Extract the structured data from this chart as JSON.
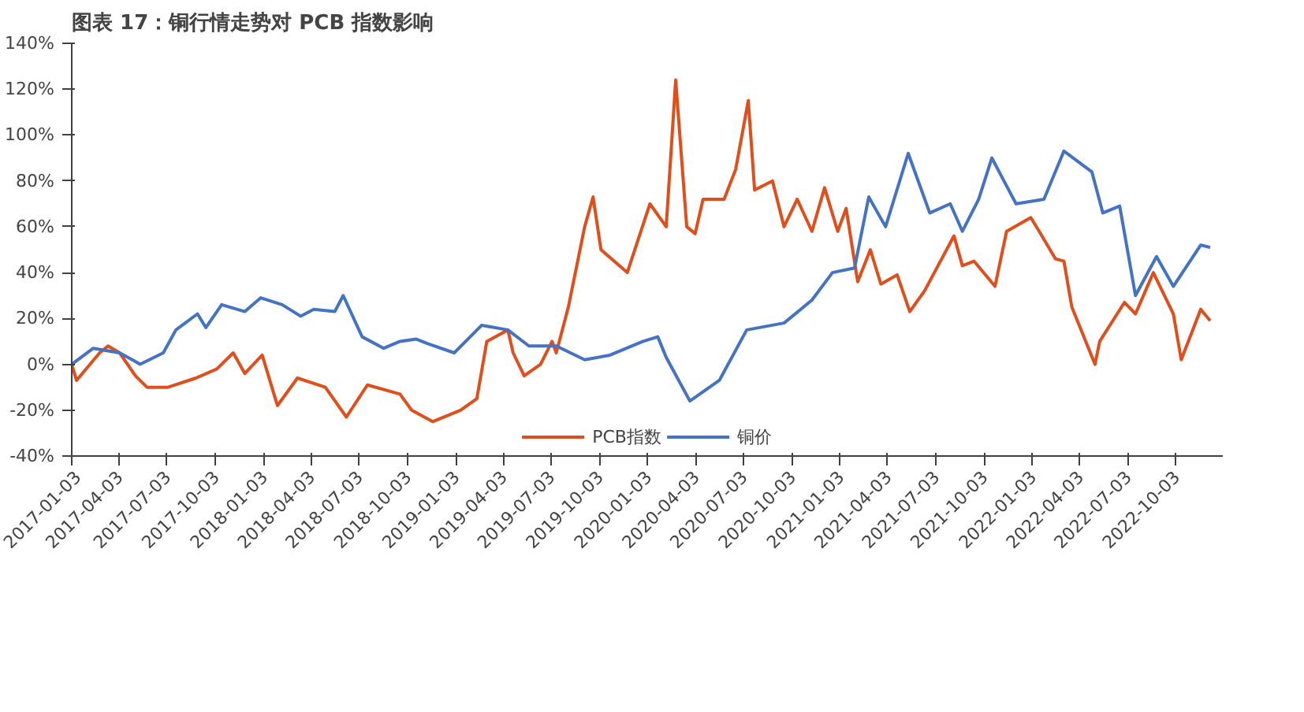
{
  "chart_data": {
    "type": "line",
    "title": "图表 17：铜行情走势对 PCB 指数影响",
    "xlim": [
      "2017-01-03",
      "2022-12-31"
    ],
    "xticks": [
      "2017-01-03",
      "2017-04-03",
      "2017-07-03",
      "2017-10-03",
      "2018-01-03",
      "2018-04-03",
      "2018-07-03",
      "2018-10-03",
      "2019-01-03",
      "2019-04-03",
      "2019-07-03",
      "2019-10-03",
      "2020-01-03",
      "2020-04-03",
      "2020-07-03",
      "2020-10-03",
      "2021-01-03",
      "2021-04-03",
      "2021-07-03",
      "2021-10-03",
      "2022-01-03",
      "2022-04-03",
      "2022-07-03",
      "2022-10-03"
    ],
    "ylim": [
      -40,
      140
    ],
    "yticks": [
      {
        "value": -40,
        "label": "-40%"
      },
      {
        "value": -20,
        "label": "-20%"
      },
      {
        "value": 0,
        "label": "0%"
      },
      {
        "value": 20,
        "label": "20%"
      },
      {
        "value": 40,
        "label": "40%"
      },
      {
        "value": 60,
        "label": "60%"
      },
      {
        "value": 80,
        "label": "80%"
      },
      {
        "value": 100,
        "label": "100%"
      },
      {
        "value": 120,
        "label": "120%"
      },
      {
        "value": 140,
        "label": "140%"
      }
    ],
    "grid": false,
    "legend": "bottom",
    "line_style": "solid",
    "series": [
      {
        "name": "PCB指数",
        "color": "#e04e1c",
        "x": [
          "2017-01-03",
          "2017-01-12",
          "2017-02-25",
          "2017-03-13",
          "2017-04-04",
          "2017-05-04",
          "2017-05-26",
          "2017-07-05",
          "2017-08-27",
          "2017-10-06",
          "2017-11-06",
          "2017-11-28",
          "2017-12-31",
          "2018-01-29",
          "2018-03-08",
          "2018-04-30",
          "2018-06-09",
          "2018-07-19",
          "2018-09-19",
          "2018-10-11",
          "2018-11-20",
          "2019-01-12",
          "2019-02-12",
          "2019-03-03",
          "2019-04-12",
          "2019-04-22",
          "2019-05-13",
          "2019-06-13",
          "2019-07-05",
          "2019-07-13",
          "2019-08-05",
          "2019-09-05",
          "2019-09-21",
          "2019-10-06",
          "2019-11-25",
          "2020-01-07",
          "2020-02-07",
          "2020-02-25",
          "2020-03-17",
          "2020-04-02",
          "2020-04-17",
          "2020-05-27",
          "2020-06-18",
          "2020-07-12",
          "2020-07-24",
          "2020-08-27",
          "2020-09-18",
          "2020-10-13",
          "2020-11-10",
          "2020-12-04",
          "2020-12-29",
          "2021-01-14",
          "2021-02-05",
          "2021-03-01",
          "2021-03-21",
          "2021-04-21",
          "2021-05-15",
          "2021-06-12",
          "2021-08-07",
          "2021-08-23",
          "2021-09-14",
          "2021-10-24",
          "2021-11-15",
          "2021-12-31",
          "2022-01-16",
          "2022-02-16",
          "2022-03-04",
          "2022-03-19",
          "2022-05-02",
          "2022-05-11",
          "2022-06-27",
          "2022-07-18",
          "2022-08-21",
          "2022-09-28",
          "2022-10-13",
          "2022-11-19",
          "2022-12-07"
        ],
        "values": [
          0,
          -7,
          5,
          8,
          5,
          -5,
          -10,
          -10,
          -6,
          -2,
          5,
          -4,
          4,
          -18,
          -6,
          -10,
          -23,
          -9,
          -13,
          -20,
          -25,
          -20,
          -15,
          10,
          15,
          5,
          -5,
          0,
          10,
          5,
          25,
          60,
          73,
          50,
          40,
          70,
          60,
          124,
          60,
          57,
          72,
          72,
          85,
          115,
          76,
          80,
          60,
          72,
          58,
          77,
          58,
          68,
          36,
          50,
          35,
          39,
          23,
          32,
          56,
          43,
          45,
          34,
          58,
          64,
          58,
          46,
          45,
          25,
          0,
          10,
          27,
          22,
          40,
          22,
          2,
          24,
          19
        ]
      },
      {
        "name": "铜价",
        "color": "#4472c4",
        "x": [
          "2017-01-03",
          "2017-02-13",
          "2017-04-04",
          "2017-04-28",
          "2017-05-13",
          "2017-06-26",
          "2017-07-20",
          "2017-08-30",
          "2017-09-15",
          "2017-10-15",
          "2017-11-28",
          "2017-12-28",
          "2018-02-07",
          "2018-03-14",
          "2018-04-08",
          "2018-05-18",
          "2018-06-03",
          "2018-07-09",
          "2018-08-19",
          "2018-09-19",
          "2018-10-20",
          "2018-11-11",
          "2018-12-31",
          "2019-02-21",
          "2019-04-12",
          "2019-05-22",
          "2019-07-13",
          "2019-09-05",
          "2019-10-23",
          "2019-12-25",
          "2020-01-22",
          "2020-02-07",
          "2020-03-23",
          "2020-05-18",
          "2020-07-09",
          "2020-09-18",
          "2020-11-10",
          "2020-12-19",
          "2021-01-30",
          "2021-02-26",
          "2021-03-30",
          "2021-05-12",
          "2021-06-22",
          "2021-07-31",
          "2021-08-23",
          "2021-09-23",
          "2021-10-18",
          "2021-12-03",
          "2022-01-25",
          "2022-03-04",
          "2022-04-26",
          "2022-05-17",
          "2022-06-18",
          "2022-07-18",
          "2022-08-27",
          "2022-09-28",
          "2022-11-19",
          "2022-12-07"
        ],
        "values": [
          0,
          7,
          5,
          2,
          0,
          5,
          15,
          22,
          16,
          26,
          23,
          29,
          26,
          21,
          24,
          23,
          30,
          12,
          7,
          10,
          11,
          9,
          5,
          17,
          15,
          8,
          8,
          2,
          4,
          10,
          12,
          3,
          -16,
          -7,
          15,
          18,
          28,
          40,
          42,
          73,
          60,
          92,
          66,
          70,
          58,
          72,
          90,
          70,
          72,
          93,
          84,
          66,
          69,
          30,
          47,
          34,
          52,
          51
        ]
      }
    ]
  }
}
